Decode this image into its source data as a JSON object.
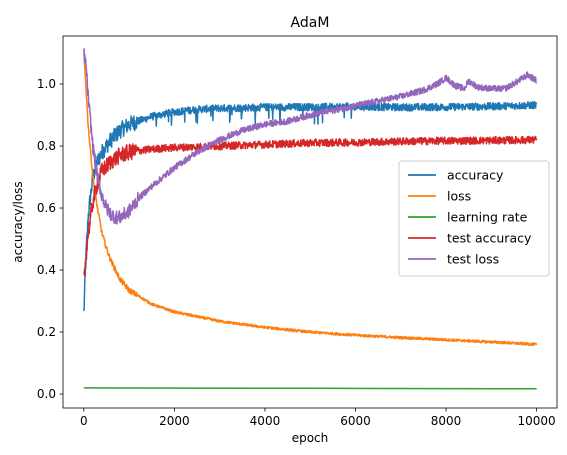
{
  "chart_data": {
    "type": "line",
    "title": "AdaM",
    "xlabel": "epoch",
    "ylabel": "accuracy/loss",
    "xlim": [
      -460,
      10450
    ],
    "ylim": [
      -0.045,
      1.155
    ],
    "xticks": [
      0,
      2000,
      4000,
      6000,
      8000,
      10000
    ],
    "xtick_labels": [
      "0",
      "2000",
      "4000",
      "6000",
      "8000",
      "10000"
    ],
    "yticks": [
      0.0,
      0.2,
      0.4,
      0.6,
      0.8,
      1.0
    ],
    "ytick_labels": [
      "0.0",
      "0.2",
      "0.4",
      "0.6",
      "0.8",
      "1.0"
    ],
    "grid": false,
    "legend_position": "center-right",
    "series": [
      {
        "name": "accuracy",
        "color": "#1f77b4",
        "noise": 0.012,
        "x": [
          0,
          50,
          100,
          200,
          300,
          400,
          600,
          800,
          1000,
          1500,
          2000,
          2500,
          3000,
          4000,
          5000,
          6000,
          7000,
          8000,
          9000,
          10000
        ],
        "y": [
          0.26,
          0.45,
          0.58,
          0.7,
          0.75,
          0.78,
          0.82,
          0.85,
          0.87,
          0.895,
          0.91,
          0.918,
          0.922,
          0.925,
          0.926,
          0.927,
          0.925,
          0.926,
          0.928,
          0.932
        ]
      },
      {
        "name": "loss",
        "color": "#ff7f0e",
        "noise": 0.004,
        "x": [
          0,
          50,
          100,
          200,
          300,
          400,
          500,
          600,
          800,
          1000,
          1500,
          2000,
          3000,
          4000,
          5000,
          6000,
          7000,
          8000,
          9000,
          10000
        ],
        "y": [
          1.1,
          0.98,
          0.86,
          0.7,
          0.6,
          0.52,
          0.47,
          0.43,
          0.37,
          0.335,
          0.29,
          0.265,
          0.235,
          0.215,
          0.2,
          0.19,
          0.182,
          0.175,
          0.168,
          0.16
        ]
      },
      {
        "name": "learning rate",
        "color": "#2ca02c",
        "noise": 0.0,
        "x": [
          0,
          10000
        ],
        "y": [
          0.02,
          0.017
        ]
      },
      {
        "name": "test accuracy",
        "color": "#d62728",
        "noise": 0.012,
        "x": [
          0,
          50,
          100,
          200,
          300,
          400,
          600,
          800,
          1000,
          1500,
          2000,
          3000,
          4000,
          5000,
          6000,
          7000,
          8000,
          9000,
          10000
        ],
        "y": [
          0.36,
          0.45,
          0.52,
          0.62,
          0.68,
          0.72,
          0.75,
          0.77,
          0.78,
          0.79,
          0.795,
          0.8,
          0.805,
          0.81,
          0.812,
          0.815,
          0.817,
          0.818,
          0.82
        ]
      },
      {
        "name": "test loss",
        "color": "#9467bd",
        "noise": 0.01,
        "x": [
          0,
          50,
          100,
          200,
          300,
          400,
          500,
          600,
          700,
          800,
          1000,
          1200,
          1500,
          2000,
          2500,
          3000,
          3500,
          4000,
          4500,
          5000,
          5500,
          6000,
          6500,
          7000,
          7500,
          7800,
          8000,
          8200,
          8400,
          8500,
          8700,
          9000,
          9300,
          9600,
          9800,
          10000
        ],
        "y": [
          1.1,
          1.06,
          0.95,
          0.8,
          0.7,
          0.64,
          0.6,
          0.58,
          0.57,
          0.57,
          0.59,
          0.63,
          0.67,
          0.73,
          0.78,
          0.82,
          0.85,
          0.87,
          0.88,
          0.9,
          0.915,
          0.93,
          0.945,
          0.96,
          0.98,
          1.0,
          1.02,
          0.995,
          0.985,
          1.01,
          0.99,
          0.985,
          0.985,
          1.01,
          1.03,
          1.01
        ]
      }
    ]
  }
}
